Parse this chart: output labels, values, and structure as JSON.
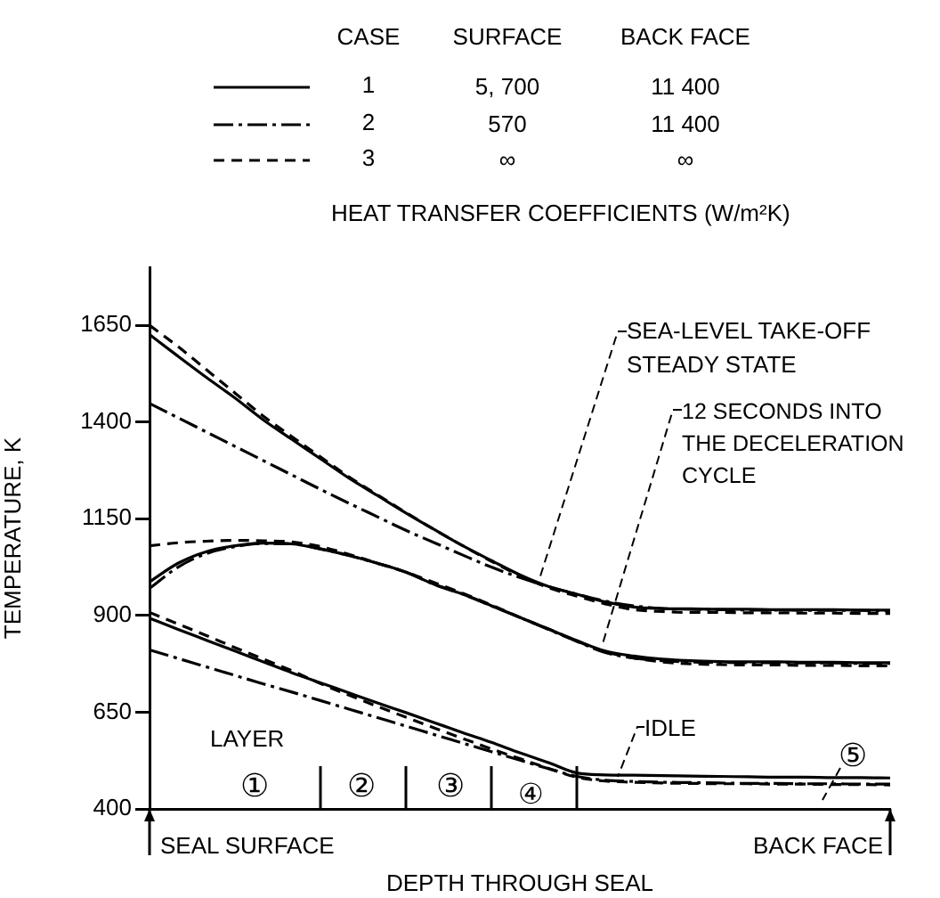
{
  "chart_data": {
    "type": "line",
    "title": null,
    "xlabel": "DEPTH THROUGH SEAL",
    "ylabel": "TEMPERATURE, K",
    "legend_title": "HEAT TRANSFER COEFFICIENTS (W/m²K)",
    "categories": [
      null,
      null,
      null,
      null,
      null,
      null,
      null,
      null,
      null,
      null,
      null,
      null,
      null,
      null,
      null,
      null,
      null,
      null,
      null,
      null,
      null,
      null,
      null,
      null,
      null,
      null,
      null
    ],
    "series": [
      {
        "name": "1",
        "color": "#000000",
        "line_style": "solid",
        "values": [
          1626,
          1570,
          1515,
          1462,
          1405,
          1355,
          1305,
          1255,
          1210,
          1165,
          1122,
          1080,
          1042,
          1005,
          975,
          955,
          935,
          922,
          918,
          917,
          916,
          916,
          915,
          915,
          915,
          914,
          914
        ]
      },
      {
        "name": "2",
        "color": "#000000",
        "line_style": "dashed",
        "values": [
          1448,
          1411,
          1374,
          1337,
          1300,
          1263,
          1226,
          1190,
          1155,
          1120,
          1088,
          1056,
          1025,
          998,
          975,
          955,
          937,
          925,
          918,
          916,
          915,
          914,
          914,
          913,
          913,
          913,
          912
        ]
      },
      {
        "name": "3",
        "color": "#000000",
        "line_style": "dashed",
        "values": [
          1650,
          1595,
          1535,
          1475,
          1415,
          1362,
          1310,
          1258,
          1212,
          1166,
          1122,
          1080,
          1040,
          1003,
          972,
          950,
          930,
          915,
          910,
          908,
          908,
          907,
          907,
          906,
          906,
          905,
          905
        ]
      },
      {
        "color": "#000000",
        "line_style": "solid",
        "values": [
          987,
          1035,
          1065,
          1080,
          1087,
          1085,
          1072,
          1055,
          1035,
          1012,
          980,
          955,
          925,
          895,
          865,
          835,
          808,
          795,
          787,
          783,
          781,
          780,
          780,
          779,
          779,
          778,
          778
        ]
      },
      {
        "color": "#000000",
        "line_style": "dashed",
        "values": [
          970,
          1025,
          1060,
          1078,
          1086,
          1085,
          1072,
          1055,
          1035,
          1012,
          980,
          955,
          925,
          895,
          864,
          833,
          804,
          790,
          783,
          780,
          779,
          778,
          778,
          777,
          777,
          776,
          776
        ]
      },
      {
        "color": "#000000",
        "line_style": "dashed",
        "values": [
          1080,
          1088,
          1092,
          1094,
          1093,
          1090,
          1078,
          1058,
          1035,
          1012,
          985,
          957,
          927,
          895,
          865,
          834,
          806,
          790,
          780,
          775,
          773,
          772,
          772,
          771,
          771,
          770,
          770
        ]
      },
      {
        "color": "#000000",
        "line_style": "solid",
        "values": [
          893,
          864,
          836,
          808,
          780,
          752,
          726,
          700,
          674,
          649,
          623,
          597,
          572,
          545,
          520,
          493,
          488,
          487,
          486,
          485,
          484,
          483,
          482,
          482,
          481,
          481,
          480
        ]
      },
      {
        "color": "#000000",
        "line_style": "dashed",
        "values": [
          811,
          789,
          767,
          745,
          723,
          702,
          680,
          658,
          636,
          614,
          592,
          570,
          548,
          526,
          504,
          484,
          474,
          471,
          469,
          468,
          467,
          466,
          466,
          465,
          465,
          464,
          464
        ]
      },
      {
        "color": "#000000",
        "line_style": "dashed",
        "values": [
          908,
          878,
          848,
          817,
          787,
          757,
          724,
          694,
          665,
          637,
          609,
          582,
          555,
          530,
          505,
          482,
          472,
          469,
          467,
          466,
          465,
          465,
          464,
          464,
          463,
          463,
          462
        ]
      }
    ],
    "ylim": [
      400,
      1800
    ],
    "yticks": [
      400,
      650,
      900,
      1150,
      1400,
      1650
    ],
    "tick_labels": "y",
    "grid": false,
    "legend": "top",
    "marker": "none",
    "annotations": [
      "CASE",
      "SURFACE",
      "BACK FACE",
      "5, 700",
      "11 400",
      "570",
      "11 400",
      "∞",
      "∞",
      "SEA-LEVEL TAKE-OFF STEADY STATE",
      "12 SECONDS INTO THE DECELERATION CYCLE",
      "IDLE",
      "LAYER",
      "①",
      "②",
      "③",
      "④",
      "⑤",
      "SEAL SURFACE",
      "BACK FACE"
    ]
  }
}
